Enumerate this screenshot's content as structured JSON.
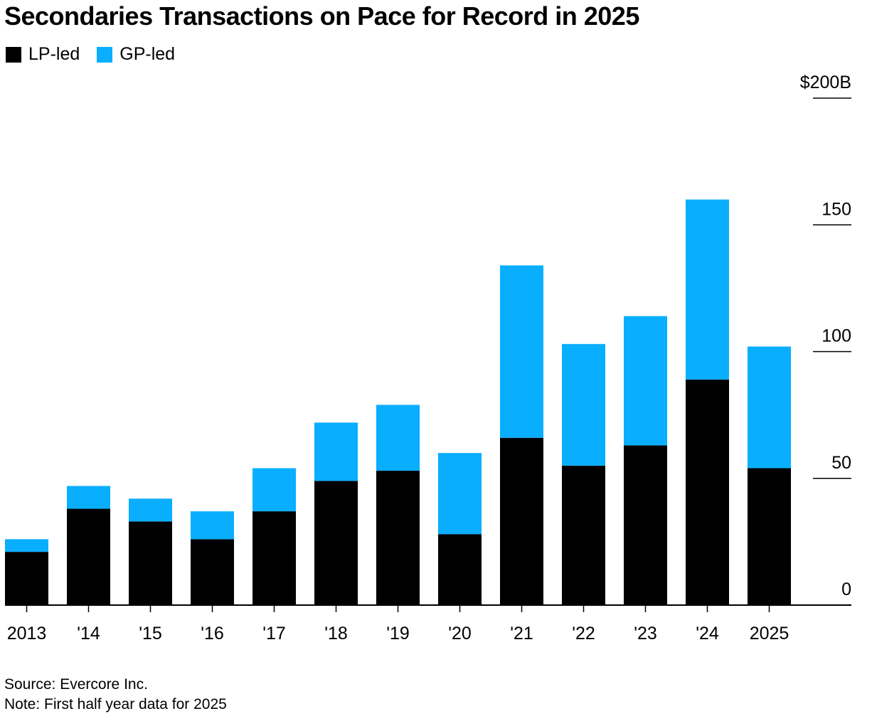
{
  "chart_data": {
    "type": "bar",
    "stacked": true,
    "title": "Secondaries Transactions on Pace for Record in 2025",
    "categories": [
      "2013",
      "'14",
      "'15",
      "'16",
      "'17",
      "'18",
      "'19",
      "'20",
      "'21",
      "'22",
      "'23",
      "'24",
      "2025"
    ],
    "series": [
      {
        "name": "LP-led",
        "color": "#000000",
        "values": [
          21,
          38,
          33,
          26,
          37,
          49,
          53,
          28,
          66,
          55,
          63,
          89,
          54
        ]
      },
      {
        "name": "GP-led",
        "color": "#0aaeff",
        "values": [
          5,
          9,
          9,
          11,
          17,
          23,
          26,
          32,
          68,
          48,
          51,
          71,
          48
        ]
      }
    ],
    "yticks": [
      0,
      50,
      100,
      150,
      200
    ],
    "ytick_labels": [
      "0",
      "50",
      "100",
      "150",
      "$200B"
    ],
    "ylim": [
      0,
      200
    ],
    "yaxis_position": "right",
    "legend_position": "top-left"
  },
  "footer": {
    "source": "Source: Evercore Inc.",
    "note": "Note: First half year data for 2025"
  }
}
